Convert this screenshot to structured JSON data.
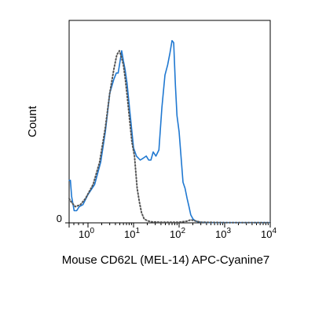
{
  "chart_data": {
    "type": "line",
    "xlabel": "Mouse CD62L (MEL-14) APC-Cyanine7",
    "ylabel": "Count",
    "x_scale": "biexponential-log",
    "xlim": [
      -0.5,
      10000
    ],
    "ylim": [
      0,
      100
    ],
    "x_ticks": [
      {
        "value": 1,
        "base": "10",
        "exp": "0"
      },
      {
        "value": 10,
        "base": "10",
        "exp": "1"
      },
      {
        "value": 100,
        "base": "10",
        "exp": "2"
      },
      {
        "value": 1000,
        "base": "10",
        "exp": "3"
      },
      {
        "value": 10000,
        "base": "10",
        "exp": "4"
      }
    ],
    "y_ticks": [
      {
        "value": 0,
        "label": "0"
      }
    ],
    "grid": false,
    "legend": "none",
    "series": [
      {
        "style": "solid",
        "color": "#1f78d1",
        "x": [
          -0.5,
          -0.4,
          -0.3,
          -0.1,
          0.1,
          0.3,
          0.6,
          1.0,
          1.4,
          1.9,
          2.4,
          3.0,
          3.7,
          4.2,
          4.6,
          5.0,
          5.5,
          6.0,
          6.5,
          7.2,
          8.3,
          10.0,
          11.6,
          14.0,
          16.5,
          19.0,
          21.5,
          24.0,
          27.0,
          31.0,
          36.0,
          42.0,
          49.0,
          56.0,
          63.0,
          70.0,
          76.0,
          83.0,
          90.0,
          100.0,
          110.0,
          122.0,
          135.0,
          150.0,
          165.0,
          180.0,
          200.0,
          225.0,
          260.0,
          300.0,
          400.0,
          600.0,
          1000.0,
          3000.0,
          10000.0
        ],
        "y": [
          21,
          21,
          13,
          6,
          6,
          8,
          9,
          14,
          19,
          30,
          45,
          64,
          71,
          74,
          74,
          79,
          85,
          80,
          76,
          69,
          55,
          37,
          33,
          31,
          32,
          33,
          31,
          31,
          35,
          33,
          36,
          57,
          73,
          78,
          84,
          90,
          89,
          68,
          53,
          45,
          33,
          20,
          17,
          12,
          8,
          4,
          2,
          1,
          0.5,
          0.3,
          0.2,
          0.1,
          0.1,
          0.1,
          0.1
        ]
      },
      {
        "style": "dotted",
        "color": "#555555",
        "x": [
          -0.5,
          -0.3,
          0.0,
          0.4,
          0.8,
          1.3,
          1.8,
          2.4,
          3.0,
          3.7,
          4.3,
          4.9,
          5.4,
          6.0,
          6.6,
          7.3,
          8.1,
          9.2,
          10.5,
          12.0,
          13.5,
          15.0,
          17.0,
          20.0,
          25.0,
          40.0,
          100.0,
          150.0,
          180.0,
          220.0,
          300.0,
          1000.0,
          10000.0
        ],
        "y": [
          12,
          10,
          8,
          9,
          12,
          19,
          30,
          47,
          64,
          76,
          83,
          85,
          82,
          78,
          71,
          62,
          52,
          40,
          33,
          17,
          10,
          5,
          2,
          1,
          0.5,
          0.3,
          0.3,
          0.8,
          1.5,
          1.0,
          0.3,
          0.1,
          0.1
        ]
      }
    ]
  }
}
